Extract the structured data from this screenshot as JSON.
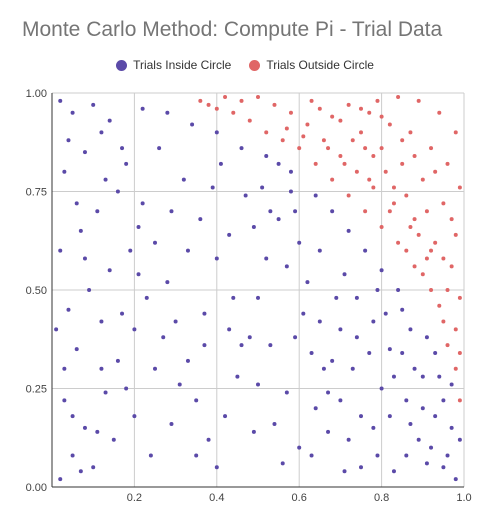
{
  "chart_data": {
    "type": "scatter",
    "title": "Monte Carlo Method: Compute Pi - Trial Data",
    "xlim": [
      0,
      1
    ],
    "ylim": [
      0,
      1
    ],
    "x_ticks": [
      "",
      "0.2",
      "0.4",
      "0.6",
      "0.8",
      "1.0"
    ],
    "y_ticks": [
      "0.00",
      "0.25",
      "0.50",
      "0.75",
      "1.00"
    ],
    "grid": true,
    "legend_position": "top-center",
    "series": [
      {
        "name": "Trials Inside Circle",
        "color": "#5b4aa8",
        "points": [
          [
            0.02,
            0.02
          ],
          [
            0.05,
            0.08
          ],
          [
            0.08,
            0.15
          ],
          [
            0.03,
            0.22
          ],
          [
            0.1,
            0.05
          ],
          [
            0.12,
            0.3
          ],
          [
            0.06,
            0.35
          ],
          [
            0.15,
            0.12
          ],
          [
            0.18,
            0.25
          ],
          [
            0.2,
            0.4
          ],
          [
            0.04,
            0.45
          ],
          [
            0.09,
            0.5
          ],
          [
            0.14,
            0.55
          ],
          [
            0.02,
            0.6
          ],
          [
            0.07,
            0.65
          ],
          [
            0.11,
            0.7
          ],
          [
            0.16,
            0.75
          ],
          [
            0.03,
            0.8
          ],
          [
            0.08,
            0.85
          ],
          [
            0.12,
            0.9
          ],
          [
            0.05,
            0.95
          ],
          [
            0.02,
            0.98
          ],
          [
            0.1,
            0.97
          ],
          [
            0.14,
            0.93
          ],
          [
            0.18,
            0.82
          ],
          [
            0.22,
            0.72
          ],
          [
            0.25,
            0.62
          ],
          [
            0.28,
            0.52
          ],
          [
            0.3,
            0.42
          ],
          [
            0.33,
            0.32
          ],
          [
            0.35,
            0.22
          ],
          [
            0.38,
            0.12
          ],
          [
            0.4,
            0.05
          ],
          [
            0.42,
            0.18
          ],
          [
            0.45,
            0.28
          ],
          [
            0.48,
            0.38
          ],
          [
            0.5,
            0.48
          ],
          [
            0.52,
            0.58
          ],
          [
            0.55,
            0.68
          ],
          [
            0.58,
            0.75
          ],
          [
            0.6,
            0.62
          ],
          [
            0.62,
            0.52
          ],
          [
            0.65,
            0.42
          ],
          [
            0.68,
            0.32
          ],
          [
            0.7,
            0.22
          ],
          [
            0.72,
            0.12
          ],
          [
            0.75,
            0.05
          ],
          [
            0.78,
            0.15
          ],
          [
            0.8,
            0.25
          ],
          [
            0.82,
            0.35
          ],
          [
            0.85,
            0.45
          ],
          [
            0.88,
            0.3
          ],
          [
            0.9,
            0.2
          ],
          [
            0.92,
            0.1
          ],
          [
            0.95,
            0.05
          ],
          [
            0.97,
            0.15
          ],
          [
            0.98,
            0.02
          ],
          [
            0.87,
            0.4
          ],
          [
            0.84,
            0.5
          ],
          [
            0.8,
            0.55
          ],
          [
            0.76,
            0.6
          ],
          [
            0.72,
            0.65
          ],
          [
            0.68,
            0.7
          ],
          [
            0.64,
            0.74
          ],
          [
            0.58,
            0.8
          ],
          [
            0.52,
            0.84
          ],
          [
            0.46,
            0.86
          ],
          [
            0.4,
            0.9
          ],
          [
            0.34,
            0.92
          ],
          [
            0.28,
            0.95
          ],
          [
            0.22,
            0.96
          ],
          [
            0.26,
            0.86
          ],
          [
            0.32,
            0.78
          ],
          [
            0.36,
            0.68
          ],
          [
            0.4,
            0.58
          ],
          [
            0.44,
            0.48
          ],
          [
            0.46,
            0.36
          ],
          [
            0.5,
            0.26
          ],
          [
            0.54,
            0.16
          ],
          [
            0.56,
            0.06
          ],
          [
            0.6,
            0.1
          ],
          [
            0.64,
            0.2
          ],
          [
            0.66,
            0.3
          ],
          [
            0.7,
            0.4
          ],
          [
            0.74,
            0.48
          ],
          [
            0.78,
            0.42
          ],
          [
            0.82,
            0.18
          ],
          [
            0.86,
            0.08
          ],
          [
            0.9,
            0.28
          ],
          [
            0.93,
            0.34
          ],
          [
            0.95,
            0.22
          ],
          [
            0.24,
            0.08
          ],
          [
            0.2,
            0.18
          ],
          [
            0.16,
            0.32
          ],
          [
            0.12,
            0.42
          ],
          [
            0.08,
            0.58
          ],
          [
            0.06,
            0.72
          ],
          [
            0.04,
            0.88
          ],
          [
            0.19,
            0.6
          ],
          [
            0.23,
            0.48
          ],
          [
            0.27,
            0.38
          ],
          [
            0.31,
            0.26
          ],
          [
            0.37,
            0.44
          ],
          [
            0.43,
            0.64
          ],
          [
            0.47,
            0.74
          ],
          [
            0.53,
            0.7
          ],
          [
            0.57,
            0.56
          ],
          [
            0.61,
            0.44
          ],
          [
            0.63,
            0.34
          ],
          [
            0.67,
            0.14
          ],
          [
            0.71,
            0.54
          ],
          [
            0.73,
            0.3
          ],
          [
            0.77,
            0.34
          ],
          [
            0.79,
            0.5
          ],
          [
            0.83,
            0.28
          ],
          [
            0.86,
            0.22
          ],
          [
            0.89,
            0.12
          ],
          [
            0.91,
            0.38
          ],
          [
            0.94,
            0.28
          ],
          [
            0.96,
            0.08
          ],
          [
            0.99,
            0.12
          ],
          [
            0.13,
            0.78
          ],
          [
            0.17,
            0.86
          ],
          [
            0.21,
            0.66
          ],
          [
            0.29,
            0.7
          ],
          [
            0.33,
            0.6
          ],
          [
            0.39,
            0.76
          ],
          [
            0.41,
            0.82
          ],
          [
            0.49,
            0.66
          ],
          [
            0.51,
            0.76
          ],
          [
            0.55,
            0.82
          ],
          [
            0.59,
            0.7
          ],
          [
            0.65,
            0.6
          ],
          [
            0.69,
            0.48
          ],
          [
            0.74,
            0.38
          ],
          [
            0.81,
            0.44
          ],
          [
            0.01,
            0.4
          ],
          [
            0.03,
            0.3
          ],
          [
            0.05,
            0.18
          ],
          [
            0.07,
            0.04
          ],
          [
            0.11,
            0.14
          ],
          [
            0.13,
            0.24
          ],
          [
            0.17,
            0.44
          ],
          [
            0.21,
            0.54
          ],
          [
            0.25,
            0.3
          ],
          [
            0.29,
            0.16
          ],
          [
            0.35,
            0.08
          ],
          [
            0.37,
            0.36
          ],
          [
            0.43,
            0.4
          ],
          [
            0.49,
            0.14
          ],
          [
            0.53,
            0.36
          ],
          [
            0.57,
            0.24
          ],
          [
            0.59,
            0.38
          ],
          [
            0.63,
            0.08
          ],
          [
            0.67,
            0.24
          ],
          [
            0.71,
            0.04
          ],
          [
            0.75,
            0.18
          ],
          [
            0.79,
            0.08
          ],
          [
            0.83,
            0.04
          ],
          [
            0.85,
            0.34
          ],
          [
            0.87,
            0.16
          ],
          [
            0.91,
            0.06
          ],
          [
            0.93,
            0.18
          ],
          [
            0.97,
            0.26
          ]
        ]
      },
      {
        "name": "Trials Outside Circle",
        "color": "#e06666",
        "points": [
          [
            0.36,
            0.98
          ],
          [
            0.4,
            0.96
          ],
          [
            0.44,
            0.95
          ],
          [
            0.48,
            0.93
          ],
          [
            0.52,
            0.9
          ],
          [
            0.56,
            0.88
          ],
          [
            0.6,
            0.86
          ],
          [
            0.64,
            0.82
          ],
          [
            0.68,
            0.78
          ],
          [
            0.72,
            0.74
          ],
          [
            0.76,
            0.7
          ],
          [
            0.8,
            0.66
          ],
          [
            0.84,
            0.62
          ],
          [
            0.88,
            0.56
          ],
          [
            0.92,
            0.5
          ],
          [
            0.95,
            0.42
          ],
          [
            0.98,
            0.3
          ],
          [
            0.99,
            0.22
          ],
          [
            0.96,
            0.36
          ],
          [
            0.94,
            0.46
          ],
          [
            0.9,
            0.54
          ],
          [
            0.86,
            0.6
          ],
          [
            0.82,
            0.7
          ],
          [
            0.78,
            0.76
          ],
          [
            0.74,
            0.8
          ],
          [
            0.7,
            0.84
          ],
          [
            0.66,
            0.88
          ],
          [
            0.62,
            0.92
          ],
          [
            0.58,
            0.95
          ],
          [
            0.54,
            0.97
          ],
          [
            0.5,
            0.99
          ],
          [
            0.46,
            0.98
          ],
          [
            0.42,
            0.99
          ],
          [
            0.38,
            0.97
          ],
          [
            0.65,
            0.96
          ],
          [
            0.7,
            0.93
          ],
          [
            0.75,
            0.9
          ],
          [
            0.8,
            0.86
          ],
          [
            0.85,
            0.82
          ],
          [
            0.9,
            0.78
          ],
          [
            0.95,
            0.72
          ],
          [
            0.98,
            0.64
          ],
          [
            0.97,
            0.56
          ],
          [
            0.99,
            0.48
          ],
          [
            0.93,
            0.62
          ],
          [
            0.88,
            0.68
          ],
          [
            0.83,
            0.76
          ],
          [
            0.78,
            0.84
          ],
          [
            0.73,
            0.88
          ],
          [
            0.68,
            0.94
          ],
          [
            0.63,
            0.98
          ],
          [
            0.72,
            0.97
          ],
          [
            0.77,
            0.95
          ],
          [
            0.82,
            0.92
          ],
          [
            0.87,
            0.9
          ],
          [
            0.92,
            0.86
          ],
          [
            0.96,
            0.82
          ],
          [
            0.99,
            0.76
          ],
          [
            0.98,
            0.9
          ],
          [
            0.94,
            0.95
          ],
          [
            0.89,
            0.98
          ],
          [
            0.84,
            0.99
          ],
          [
            0.79,
            0.98
          ],
          [
            0.91,
            0.7
          ],
          [
            0.86,
            0.74
          ],
          [
            0.81,
            0.8
          ],
          [
            0.76,
            0.86
          ],
          [
            0.97,
            0.68
          ],
          [
            0.92,
            0.6
          ],
          [
            0.89,
            0.64
          ],
          [
            0.96,
            0.5
          ],
          [
            0.98,
            0.4
          ],
          [
            0.99,
            0.34
          ],
          [
            0.95,
            0.58
          ],
          [
            0.93,
            0.8
          ],
          [
            0.88,
            0.84
          ],
          [
            0.85,
            0.88
          ],
          [
            0.8,
            0.94
          ],
          [
            0.75,
            0.96
          ],
          [
            0.57,
            0.91
          ],
          [
            0.61,
            0.89
          ],
          [
            0.67,
            0.86
          ],
          [
            0.71,
            0.82
          ],
          [
            0.77,
            0.78
          ],
          [
            0.83,
            0.72
          ],
          [
            0.87,
            0.66
          ],
          [
            0.91,
            0.58
          ]
        ]
      }
    ]
  }
}
